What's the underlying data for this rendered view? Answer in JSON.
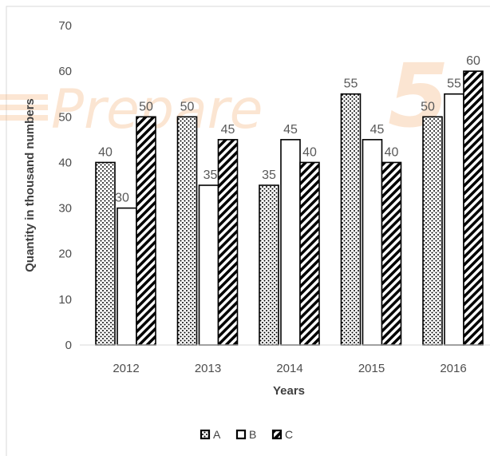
{
  "watermark": "Prepare",
  "watermark_number": "5",
  "chart_data": {
    "type": "bar",
    "categories": [
      "2012",
      "2013",
      "2014",
      "2015",
      "2016"
    ],
    "series": [
      {
        "name": "A",
        "values": [
          40,
          50,
          35,
          55,
          50
        ],
        "pattern": "dots"
      },
      {
        "name": "B",
        "values": [
          30,
          35,
          45,
          45,
          55
        ],
        "pattern": "none"
      },
      {
        "name": "C",
        "values": [
          50,
          45,
          40,
          40,
          60
        ],
        "pattern": "diagonal-hatch"
      }
    ],
    "title": "",
    "xlabel": "Years",
    "ylabel": "Quantity in thousand numbers",
    "ylim": [
      0,
      70
    ],
    "yticks": [
      0,
      10,
      20,
      30,
      40,
      50,
      60,
      70
    ],
    "grid": false,
    "legend": "bottom",
    "colors": {
      "bar_outline": "#000000",
      "bar_fill": "#ffffff",
      "watermark": "#f4a460",
      "border": "#d9d9d9"
    }
  }
}
